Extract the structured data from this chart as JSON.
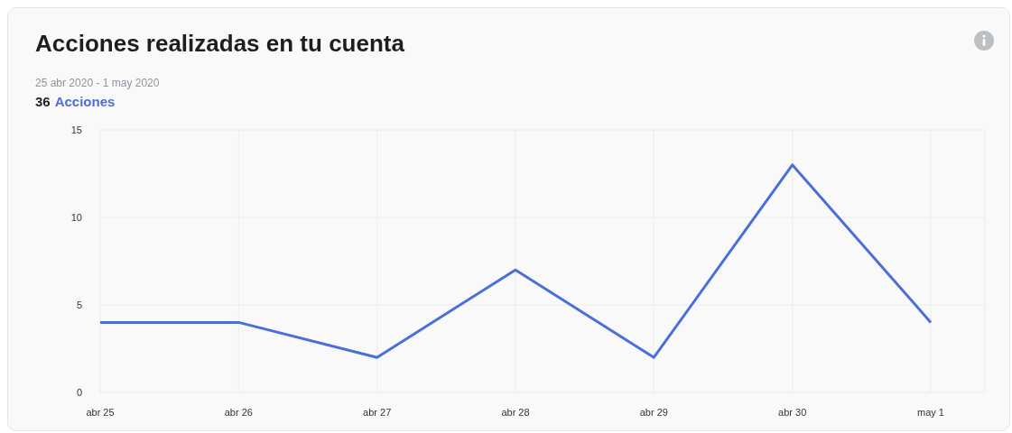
{
  "chart_data": {
    "type": "line",
    "title": "Acciones realizadas en tu cuenta",
    "subtitle": "25 abr 2020 - 1 may 2020",
    "annotations": [
      "36",
      "Acciones"
    ],
    "categories": [
      "abr 25",
      "abr 26",
      "abr 27",
      "abr 28",
      "abr 29",
      "abr 30",
      "may 1"
    ],
    "values": [
      4,
      4,
      2,
      7,
      2,
      13,
      4
    ],
    "color": "#4a6fd8",
    "ylim": [
      0,
      15
    ],
    "yticks": [
      0,
      5,
      10,
      15
    ],
    "grid": true,
    "marker": "none",
    "line_style": "solid"
  }
}
